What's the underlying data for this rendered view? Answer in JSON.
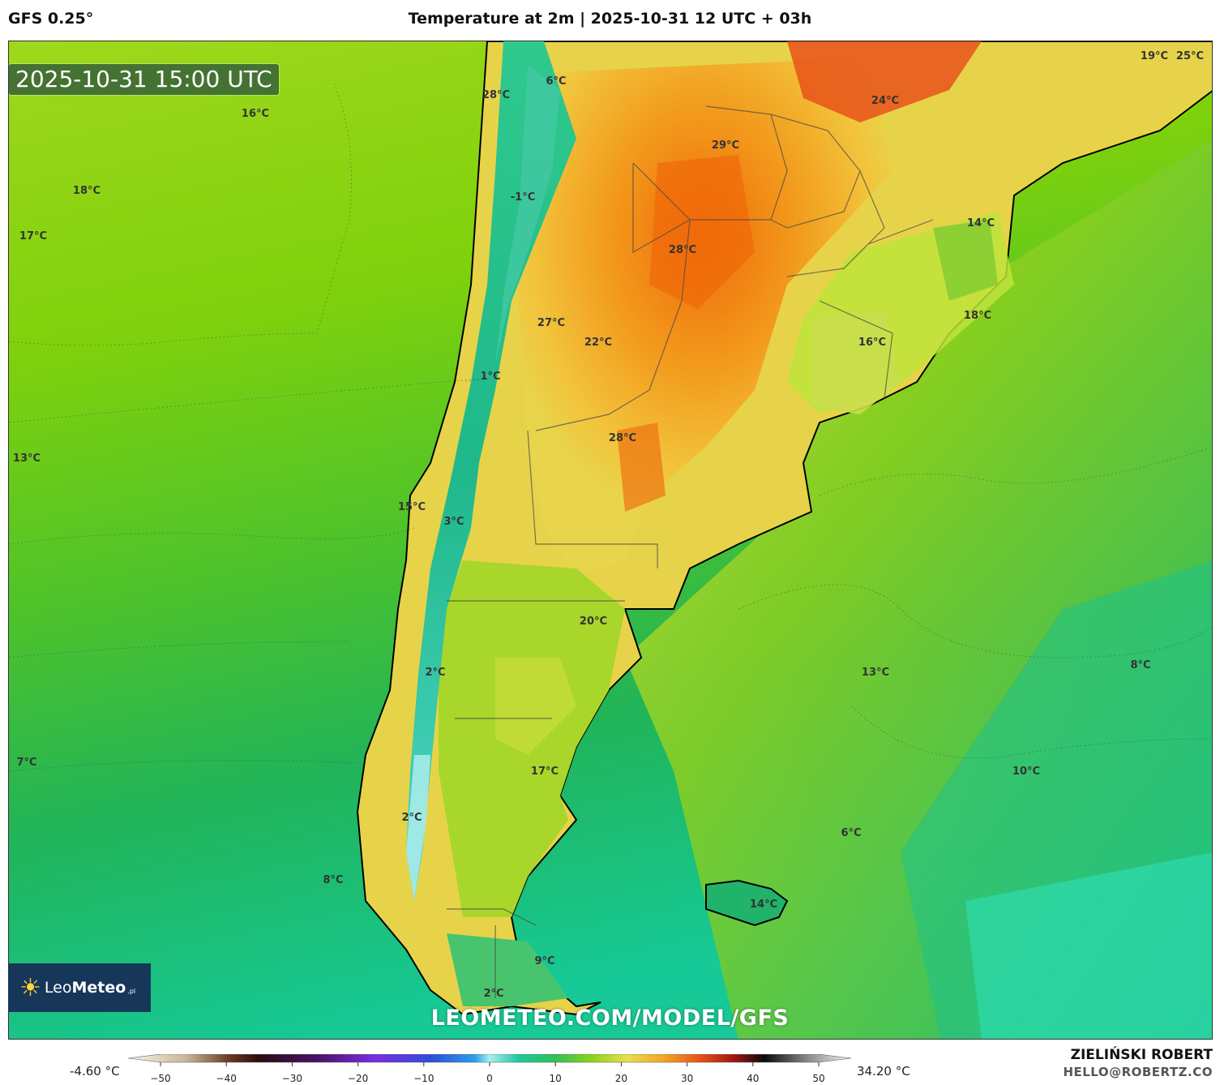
{
  "header": {
    "model": "GFS 0.25°",
    "title": "Temperature at 2m | 2025-10-31 12 UTC + 03h"
  },
  "map": {
    "valid_time": "2025-10-31 15:00 UTC",
    "labels": [
      {
        "text": "16°C"
      },
      {
        "text": "18°C"
      },
      {
        "text": "17°C"
      },
      {
        "text": "13°C"
      },
      {
        "text": "7°C"
      },
      {
        "text": "8°C"
      },
      {
        "text": "28°C"
      },
      {
        "text": "6°C"
      },
      {
        "text": "-1°C"
      },
      {
        "text": "29°C"
      },
      {
        "text": "28°C"
      },
      {
        "text": "27°C"
      },
      {
        "text": "22°C"
      },
      {
        "text": "1°C"
      },
      {
        "text": "28°C"
      },
      {
        "text": "15°C"
      },
      {
        "text": "3°C"
      },
      {
        "text": "20°C"
      },
      {
        "text": "2°C"
      },
      {
        "text": "17°C"
      },
      {
        "text": "2°C"
      },
      {
        "text": "9°C"
      },
      {
        "text": "2°C"
      },
      {
        "text": "24°C"
      },
      {
        "text": "19°C"
      },
      {
        "text": "25°C"
      },
      {
        "text": "14°C"
      },
      {
        "text": "18°C"
      },
      {
        "text": "16°C"
      },
      {
        "text": "13°C"
      },
      {
        "text": "8°C"
      },
      {
        "text": "10°C"
      },
      {
        "text": "6°C"
      },
      {
        "text": "14°C"
      }
    ],
    "watermark": "LEOMETEO.COM/MODEL/GFS"
  },
  "logo": {
    "brand_light": "Leo",
    "brand_bold": "Meteo",
    "suffix": ".pl"
  },
  "colorbar": {
    "min_label": "-4.60 °C",
    "max_label": "34.20 °C",
    "ticks": [
      "−50",
      "−40",
      "−30",
      "−20",
      "−10",
      "0",
      "10",
      "20",
      "30",
      "40",
      "50"
    ],
    "tick_values": [
      -50,
      -40,
      -30,
      -20,
      -10,
      0,
      10,
      20,
      30,
      40,
      50
    ]
  },
  "footer": {
    "author": "ZIELIŃSKI ROBERT",
    "email": "HELLO@ROBERTZ.CO"
  }
}
